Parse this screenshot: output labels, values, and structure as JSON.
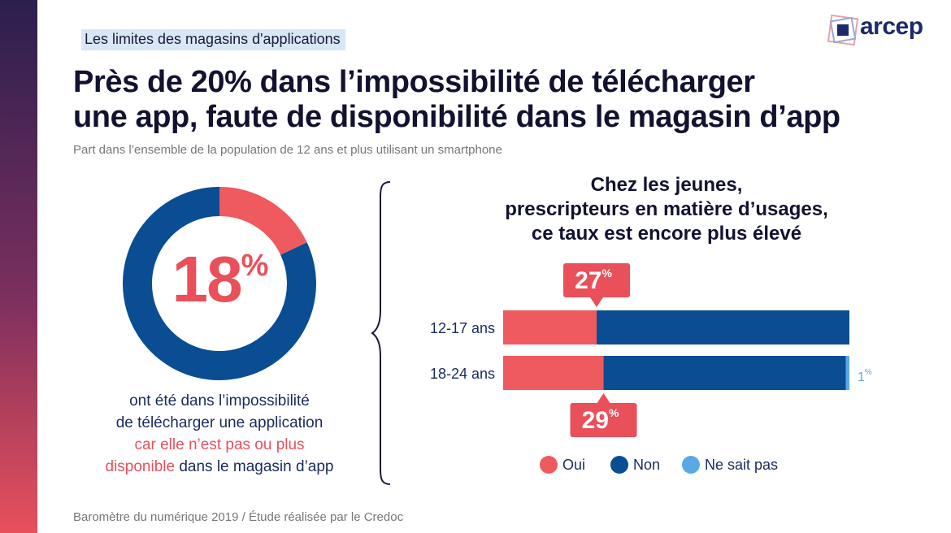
{
  "header": {
    "tag": "Les limites des magasins d'applications",
    "title_line1": "Près de 20% dans l’impossibilité de télécharger",
    "title_line2": "une app, faute de disponibilité dans le magasin d’app",
    "subtitle": "Part dans l’ensemble de la population de 12 ans et plus utilisant un smartphone",
    "logo_text": "arcep"
  },
  "donut": {
    "value_number": "18",
    "value_unit": "%",
    "desc_line1": "ont été dans l’impossibilité",
    "desc_line2": "de télécharger une application",
    "desc_line3": "car elle n’est pas ou plus",
    "desc_line4_hl": "disponible",
    "desc_line4_rest": " dans le magasin d’app"
  },
  "chart_title": {
    "line1": "Chez les jeunes,",
    "line2": "prescripteurs en matière d’usages,",
    "line3": "ce taux est encore plus élevé"
  },
  "footer": {
    "source": "Baromètre du numérique 2019 / Étude réalisée par le Credoc"
  },
  "colors": {
    "oui": "#ef5a5f",
    "non": "#0a4d92",
    "nsp": "#5aa9e6",
    "accent": "#e9505a",
    "text_dark": "#1a2a5e"
  },
  "chart_data": [
    {
      "type": "pie",
      "categories": [
        "Oui",
        "Non"
      ],
      "values": [
        18,
        82
      ],
      "unit": "%",
      "labels": [
        "18%"
      ]
    },
    {
      "type": "bar",
      "orientation": "horizontal",
      "stacked": true,
      "categories": [
        "12-17 ans",
        "18-24 ans"
      ],
      "series": [
        {
          "name": "Oui",
          "values": [
            27,
            29
          ]
        },
        {
          "name": "Non",
          "values": [
            73,
            70
          ]
        },
        {
          "name": "Ne sait pas",
          "values": [
            0,
            1
          ]
        }
      ],
      "data_labels": {
        "oui": [
          "27",
          "29"
        ],
        "nsp": [
          "",
          "1"
        ],
        "unit": "%"
      },
      "xlim": [
        0,
        100
      ],
      "legend": "bottom"
    }
  ]
}
